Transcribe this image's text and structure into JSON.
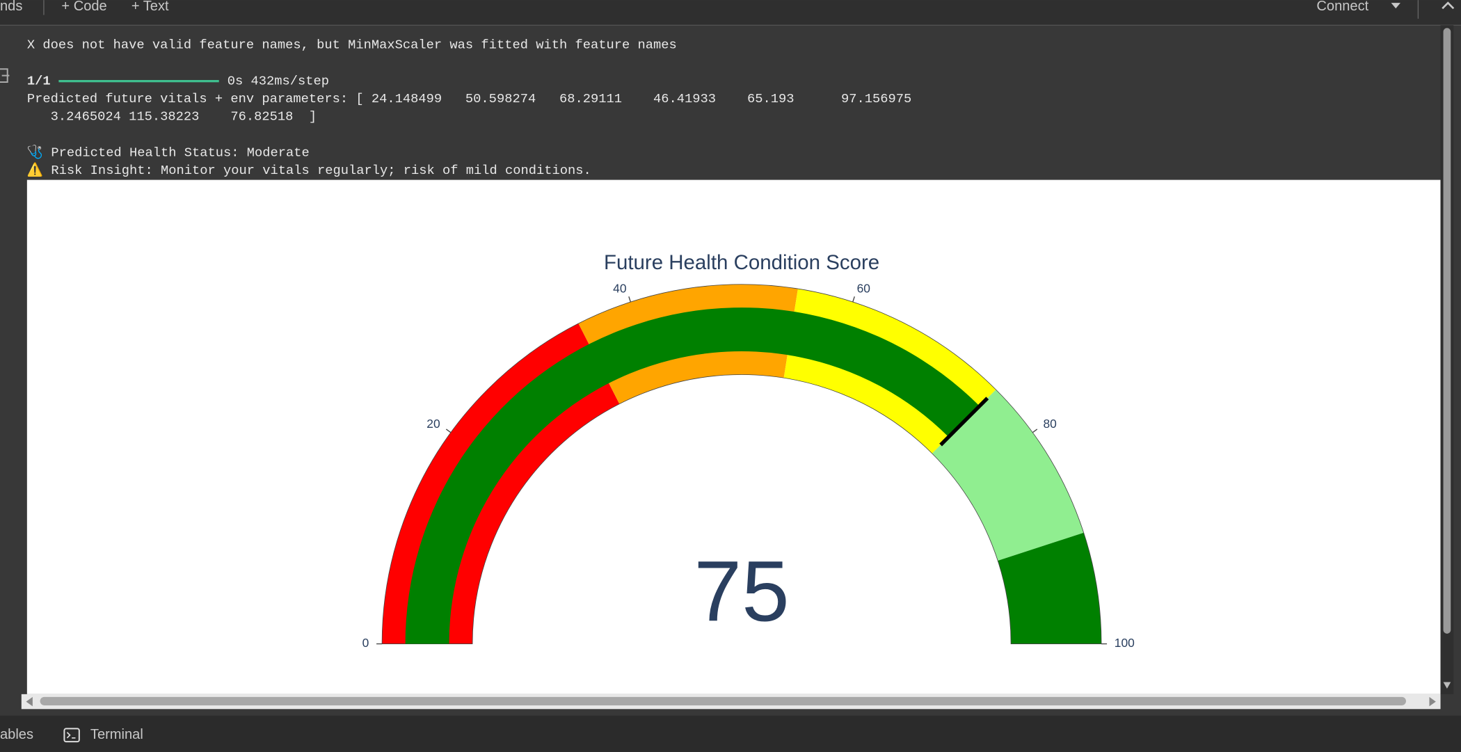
{
  "toolbar": {
    "commands": "nds",
    "code": "+ Code",
    "text": "+ Text",
    "connect": "Connect"
  },
  "output": {
    "warning": "X does not have valid feature names, but MinMaxScaler was fitted with feature names",
    "progress_step": "1/1",
    "progress_time": "0s 432ms/step",
    "prediction_line1": "Predicted future vitals + env parameters: [ 24.148499   50.598274   68.29111    46.41933    65.193      97.156975",
    "prediction_line2": "   3.2465024 115.38223    76.82518  ]",
    "status": "🩺 Predicted Health Status: Moderate",
    "insight": "⚠️ Risk Insight: Monitor your vitals regularly; risk of mild conditions."
  },
  "chart_data": {
    "type": "gauge",
    "title": "Future Health Condition Score",
    "value": 75,
    "range": [
      0,
      100
    ],
    "ticks": [
      0,
      20,
      40,
      60,
      80,
      100
    ],
    "bar_color": "green",
    "steps": [
      {
        "range": [
          0,
          35
        ],
        "color": "red"
      },
      {
        "range": [
          35,
          55
        ],
        "color": "orange"
      },
      {
        "range": [
          55,
          75
        ],
        "color": "yellow"
      },
      {
        "range": [
          75,
          90
        ],
        "color": "lightgreen"
      },
      {
        "range": [
          90,
          100
        ],
        "color": "green"
      }
    ],
    "threshold": 75,
    "threshold_color": "black"
  },
  "footer": {
    "variables": "ables",
    "terminal": "Terminal"
  }
}
